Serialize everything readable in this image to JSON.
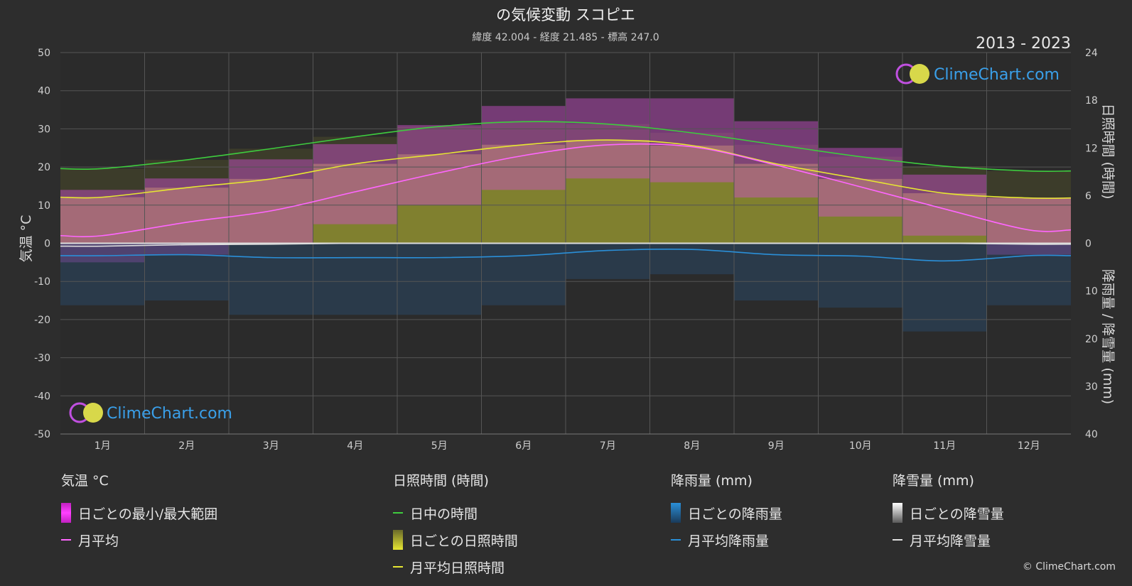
{
  "header": {
    "title": "の気候変動 スコピエ",
    "subtitle": "緯度 42.004 - 経度 21.485 - 標高 247.0",
    "period": "2013 - 2023"
  },
  "brand": {
    "name": "ClimeChart.com",
    "copyright": "© ClimeChart.com"
  },
  "chart_data": {
    "type": "area",
    "categories": [
      "1月",
      "2月",
      "3月",
      "4月",
      "5月",
      "6月",
      "7月",
      "8月",
      "9月",
      "10月",
      "11月",
      "12月"
    ],
    "left_axis": {
      "label": "気温 °C",
      "range": [
        -50,
        50
      ],
      "ticks": [
        50,
        40,
        30,
        20,
        10,
        0,
        -10,
        -20,
        -30,
        -40,
        -50
      ]
    },
    "right_axis_top": {
      "label": "日照時間 (時間)",
      "range": [
        0,
        24
      ],
      "ticks": [
        24,
        18,
        12,
        6,
        0
      ]
    },
    "right_axis_bottom": {
      "label": "降雨量 / 降雪量 (mm)",
      "range": [
        0,
        40
      ],
      "ticks": [
        10,
        20,
        30,
        40
      ]
    },
    "series": [
      {
        "name": "日中の時間",
        "color": "#3ecc3e",
        "values": [
          9.4,
          10.5,
          11.9,
          13.4,
          14.7,
          15.3,
          15.0,
          13.9,
          12.4,
          10.9,
          9.7,
          9.1
        ]
      },
      {
        "name": "月平均日照時間",
        "color": "#e6e632",
        "values": [
          5.8,
          7.0,
          8.1,
          10.0,
          11.2,
          12.4,
          13.0,
          12.3,
          10.0,
          8.1,
          6.3,
          5.7
        ]
      },
      {
        "name": "月平均",
        "color": "#ff66ff",
        "values": [
          2.0,
          5.5,
          8.5,
          13.5,
          18.5,
          23.0,
          25.8,
          25.3,
          20.5,
          14.8,
          9.0,
          3.5
        ]
      },
      {
        "name": "月平均降雨量",
        "color": "#2a8fd8",
        "values": [
          2.6,
          2.4,
          3.0,
          3.0,
          3.0,
          2.6,
          1.5,
          1.3,
          2.4,
          2.7,
          3.7,
          2.6
        ]
      },
      {
        "name": "月平均降雪量",
        "color": "#dddddd",
        "values": [
          0.6,
          0.3,
          0.2,
          0.0,
          0.0,
          0.0,
          0.0,
          0.0,
          0.0,
          0.0,
          0.0,
          0.2
        ]
      }
    ],
    "temp_range": {
      "name": "日ごとの最小/最大範囲",
      "min": [
        -5,
        -3,
        0,
        5,
        10,
        14,
        17,
        16,
        12,
        7,
        2,
        -3
      ],
      "max": [
        14,
        17,
        22,
        26,
        31,
        36,
        38,
        38,
        32,
        25,
        18,
        12
      ]
    },
    "grid": true
  },
  "legend": {
    "temperature": {
      "title": "気温 °C",
      "items": [
        "日ごとの最小/最大範囲",
        "月平均"
      ]
    },
    "sunshine": {
      "title": "日照時間 (時間)",
      "items": [
        "日中の時間",
        "日ごとの日照時間",
        "月平均日照時間"
      ]
    },
    "rain": {
      "title": "降雨量 (mm)",
      "items": [
        "日ごとの降雨量",
        "月平均降雨量"
      ]
    },
    "snow": {
      "title": "降雪量 (mm)",
      "items": [
        "日ごとの降雪量",
        "月平均降雪量"
      ]
    }
  }
}
